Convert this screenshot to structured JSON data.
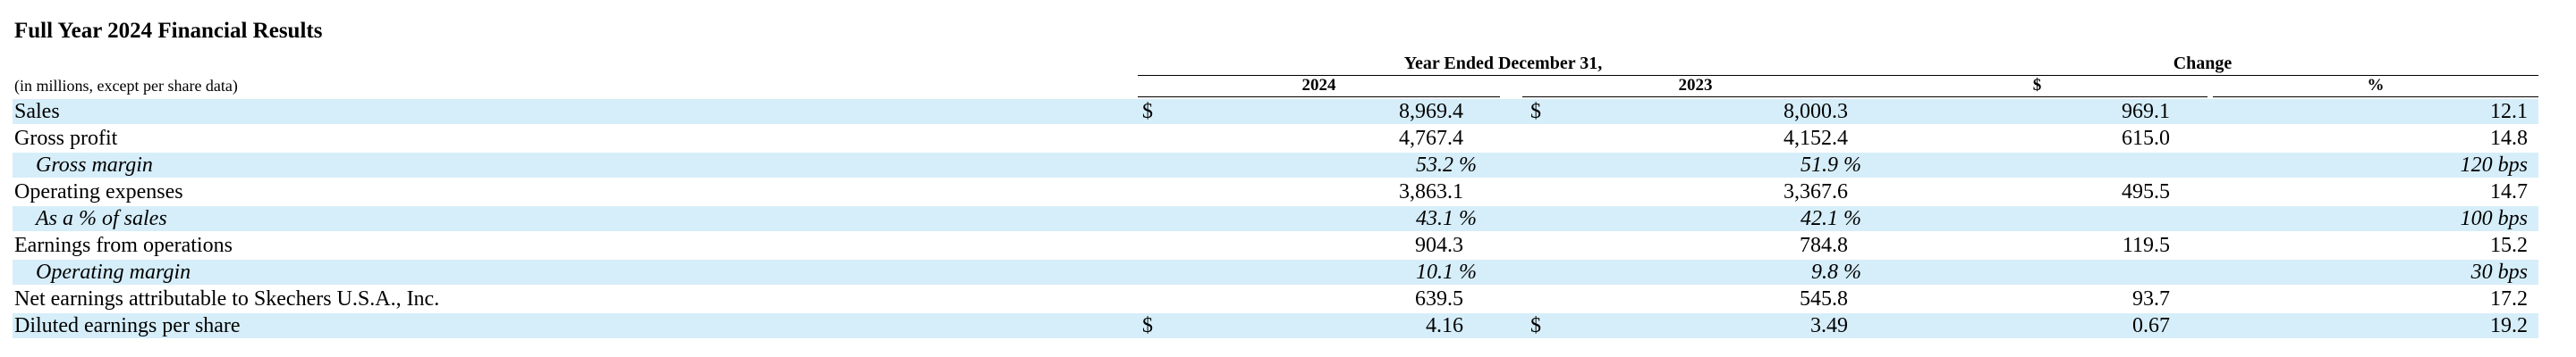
{
  "title": "Full Year 2024 Financial Results",
  "units_note": "(in millions, except per share data)",
  "header": {
    "period_group": "Year Ended December 31,",
    "change_group": "Change",
    "col_2024": "2024",
    "col_2023": "2023",
    "col_dollar": "$",
    "col_pct": "%"
  },
  "rows": [
    {
      "label": "Sales",
      "cur24": "$",
      "v2024": "8,969.4",
      "cur23": "$",
      "v2023": "8,000.3",
      "chg": "969.1",
      "pct": "12.1"
    },
    {
      "label": "Gross profit",
      "cur24": "",
      "v2024": "4,767.4",
      "cur23": "",
      "v2023": "4,152.4",
      "chg": "615.0",
      "pct": "14.8"
    },
    {
      "label": "Gross margin",
      "cur24": "",
      "v2024": "53.2 %",
      "cur23": "",
      "v2023": "51.9 %",
      "chg": "",
      "pct": "120 bps"
    },
    {
      "label": "Operating expenses",
      "cur24": "",
      "v2024": "3,863.1",
      "cur23": "",
      "v2023": "3,367.6",
      "chg": "495.5",
      "pct": "14.7"
    },
    {
      "label": "As a % of sales",
      "cur24": "",
      "v2024": "43.1 %",
      "cur23": "",
      "v2023": "42.1 %",
      "chg": "",
      "pct": "100 bps"
    },
    {
      "label": "Earnings from operations",
      "cur24": "",
      "v2024": "904.3",
      "cur23": "",
      "v2023": "784.8",
      "chg": "119.5",
      "pct": "15.2"
    },
    {
      "label": "Operating margin",
      "cur24": "",
      "v2024": "10.1 %",
      "cur23": "",
      "v2023": "9.8 %",
      "chg": "",
      "pct": "30 bps"
    },
    {
      "label": "Net earnings attributable to Skechers U.S.A., Inc.",
      "cur24": "",
      "v2024": "639.5",
      "cur23": "",
      "v2023": "545.8",
      "chg": "93.7",
      "pct": "17.2"
    },
    {
      "label": "Diluted earnings per share",
      "cur24": "$",
      "v2024": "4.16",
      "cur23": "$",
      "v2023": "3.49",
      "chg": "0.67",
      "pct": "19.2"
    }
  ]
}
